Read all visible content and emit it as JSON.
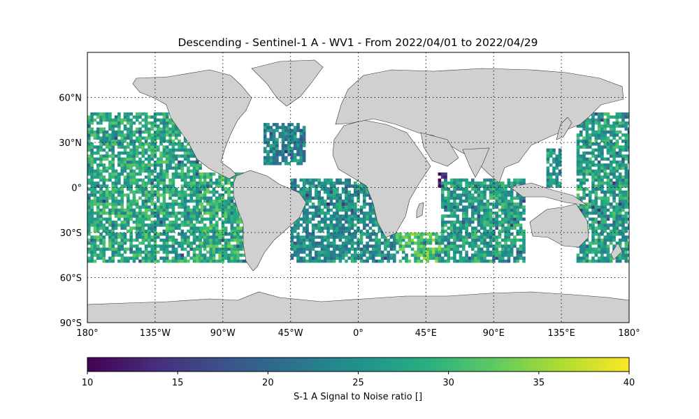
{
  "title": "Descending - Sentinel-1 A - WV1 - From 2022/04/01 to 2022/04/29",
  "map": {
    "projection": "equirectangular",
    "lon_range": [
      -180,
      180
    ],
    "lat_range": [
      -90,
      90
    ],
    "land_color": "#d0d0d0",
    "coastline_color": "#333333",
    "graticule": "dotted",
    "lon_ticks": [
      {
        "value": -180,
        "label": "180°"
      },
      {
        "value": -135,
        "label": "135°W"
      },
      {
        "value": -90,
        "label": "90°W"
      },
      {
        "value": -45,
        "label": "45°W"
      },
      {
        "value": 0,
        "label": "0°"
      },
      {
        "value": 45,
        "label": "45°E"
      },
      {
        "value": 90,
        "label": "90°E"
      },
      {
        "value": 135,
        "label": "135°E"
      },
      {
        "value": 180,
        "label": "180°"
      }
    ],
    "lat_ticks": [
      {
        "value": 60,
        "label": "60°N"
      },
      {
        "value": 30,
        "label": "30°N"
      },
      {
        "value": 0,
        "label": "0°"
      },
      {
        "value": -30,
        "label": "30°S"
      },
      {
        "value": -60,
        "label": "60°S"
      },
      {
        "value": -90,
        "label": "90°S"
      }
    ]
  },
  "colorbar": {
    "label": "S-1 A Signal to Noise ratio []",
    "colormap": "viridis",
    "min": 10,
    "max": 40,
    "ticks": [
      10,
      15,
      20,
      25,
      30,
      35,
      40
    ]
  },
  "chart_data": {
    "type": "heatmap",
    "variable": "S-1 A Signal to Noise ratio",
    "value_range": [
      10,
      40
    ],
    "typical_value_range": [
      22,
      34
    ],
    "coverage_regions": [
      {
        "lon": [
          -180,
          -105
        ],
        "lat": [
          -50,
          50
        ],
        "typical_value": 28
      },
      {
        "lon": [
          -105,
          -73
        ],
        "lat": [
          -50,
          10
        ],
        "typical_value": 29
      },
      {
        "lon": [
          -63,
          -35
        ],
        "lat": [
          15,
          43
        ],
        "typical_value": 24
      },
      {
        "lon": [
          -45,
          25
        ],
        "lat": [
          -50,
          5
        ],
        "typical_value": 25
      },
      {
        "lon": [
          25,
          55
        ],
        "lat": [
          -50,
          -30
        ],
        "typical_value": 31
      },
      {
        "lon": [
          53,
          58
        ],
        "lat": [
          -2,
          10
        ],
        "typical_value": 11
      },
      {
        "lon": [
          55,
          110
        ],
        "lat": [
          -50,
          5
        ],
        "typical_value": 27
      },
      {
        "lon": [
          125,
          135
        ],
        "lat": [
          0,
          25
        ],
        "typical_value": 26
      },
      {
        "lon": [
          145,
          180
        ],
        "lat": [
          -50,
          50
        ],
        "typical_value": 27
      }
    ]
  }
}
